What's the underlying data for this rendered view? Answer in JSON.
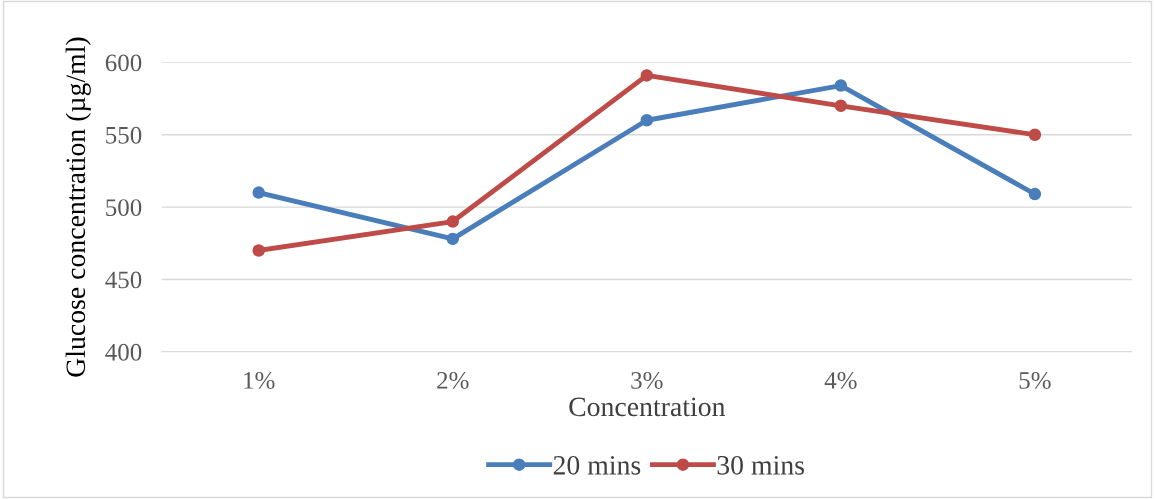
{
  "chart_data": {
    "type": "line",
    "xlabel": "Concentration",
    "ylabel": "Glucose concentration (µg/ml)",
    "categories": [
      "1%",
      "2%",
      "3%",
      "4%",
      "5%"
    ],
    "series": [
      {
        "name": "20 mins",
        "color": "#4a7ebb",
        "values": [
          510,
          478,
          560,
          584,
          509
        ]
      },
      {
        "name": "30 mins",
        "color": "#be4b48",
        "values": [
          470,
          490,
          591,
          570,
          550
        ]
      }
    ],
    "ylim": [
      400,
      600
    ],
    "yticks": [
      400,
      450,
      500,
      550,
      600
    ],
    "grid": "y",
    "legend": "bottom",
    "marker": "circle",
    "line_style": "solid"
  }
}
